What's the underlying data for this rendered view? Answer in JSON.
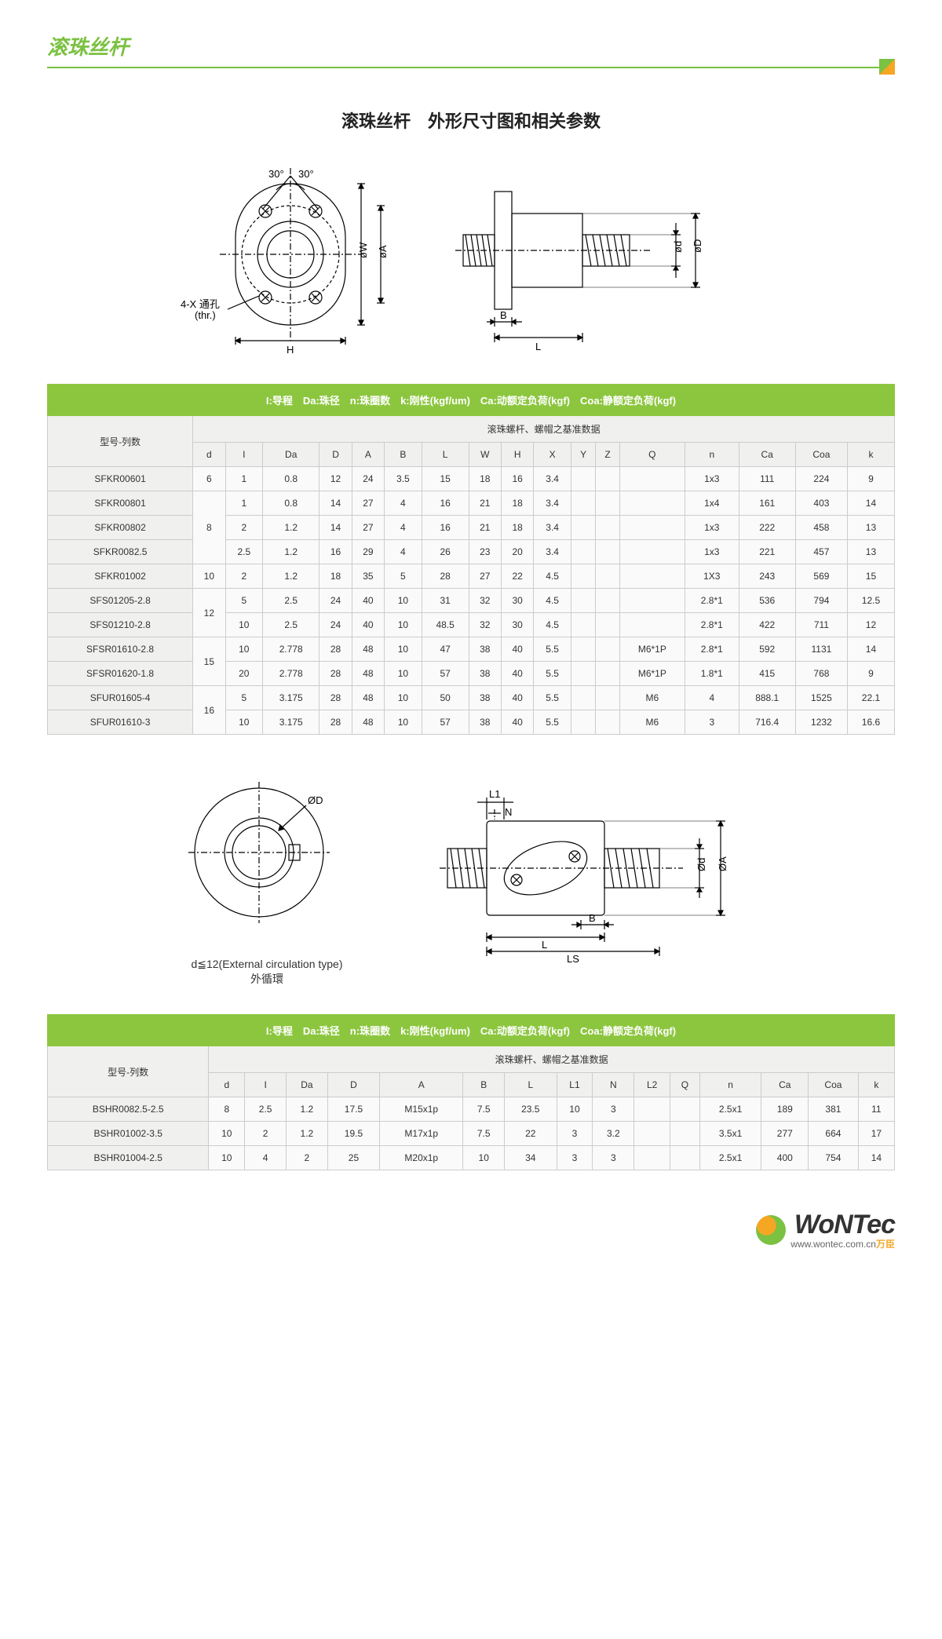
{
  "page_title": "滚珠丝杆",
  "section_title": "滚珠丝杆　外形尺寸图和相关参数",
  "diagram1": {
    "thru_label": "4-X 通孔\n(thr.)",
    "angles": [
      "30°",
      "30°"
    ],
    "dim_H": "H",
    "dim_W": "øW",
    "dim_A": "øA",
    "dim_B": "B",
    "dim_L": "L",
    "dim_d": "ød",
    "dim_D": "øD"
  },
  "table1": {
    "legend": "I:导程　Da:珠径　n:珠圈数　k:刚性(kgf/um)　Ca:动额定负荷(kgf)　Coa:静额定负荷(kgf)",
    "model_header": "型号-列数",
    "data_header": "滚珠螺杆、螺帽之基准数据",
    "columns": [
      "d",
      "I",
      "Da",
      "D",
      "A",
      "B",
      "L",
      "W",
      "H",
      "X",
      "Y",
      "Z",
      "Q",
      "n",
      "Ca",
      "Coa",
      "k"
    ],
    "rows": [
      {
        "model": "SFKR00601",
        "d": "6",
        "vals": [
          "1",
          "0.8",
          "12",
          "24",
          "3.5",
          "15",
          "18",
          "16",
          "3.4",
          "",
          "",
          "",
          "1x3",
          "111",
          "224",
          "9"
        ]
      },
      {
        "model": "SFKR00801",
        "d": "8",
        "rowspan_d": 3,
        "vals": [
          "1",
          "0.8",
          "14",
          "27",
          "4",
          "16",
          "21",
          "18",
          "3.4",
          "",
          "",
          "",
          "1x4",
          "161",
          "403",
          "14"
        ]
      },
      {
        "model": "SFKR00802",
        "vals": [
          "2",
          "1.2",
          "14",
          "27",
          "4",
          "16",
          "21",
          "18",
          "3.4",
          "",
          "",
          "",
          "1x3",
          "222",
          "458",
          "13"
        ]
      },
      {
        "model": "SFKR0082.5",
        "vals": [
          "2.5",
          "1.2",
          "16",
          "29",
          "4",
          "26",
          "23",
          "20",
          "3.4",
          "",
          "",
          "",
          "1x3",
          "221",
          "457",
          "13"
        ]
      },
      {
        "model": "SFKR01002",
        "d": "10",
        "vals": [
          "2",
          "1.2",
          "18",
          "35",
          "5",
          "28",
          "27",
          "22",
          "4.5",
          "",
          "",
          "",
          "1X3",
          "243",
          "569",
          "15"
        ]
      },
      {
        "model": "SFS01205-2.8",
        "d": "12",
        "rowspan_d": 2,
        "vals": [
          "5",
          "2.5",
          "24",
          "40",
          "10",
          "31",
          "32",
          "30",
          "4.5",
          "",
          "",
          "",
          "2.8*1",
          "536",
          "794",
          "12.5"
        ]
      },
      {
        "model": "SFS01210-2.8",
        "vals": [
          "10",
          "2.5",
          "24",
          "40",
          "10",
          "48.5",
          "32",
          "30",
          "4.5",
          "",
          "",
          "",
          "2.8*1",
          "422",
          "711",
          "12"
        ]
      },
      {
        "model": "SFSR01610-2.8",
        "d": "15",
        "rowspan_d": 2,
        "vals": [
          "10",
          "2.778",
          "28",
          "48",
          "10",
          "47",
          "38",
          "40",
          "5.5",
          "",
          "",
          "M6*1P",
          "2.8*1",
          "592",
          "1131",
          "14"
        ]
      },
      {
        "model": "SFSR01620-1.8",
        "vals": [
          "20",
          "2.778",
          "28",
          "48",
          "10",
          "57",
          "38",
          "40",
          "5.5",
          "",
          "",
          "M6*1P",
          "1.8*1",
          "415",
          "768",
          "9"
        ]
      },
      {
        "model": "SFUR01605-4",
        "d": "16",
        "rowspan_d": 2,
        "vals": [
          "5",
          "3.175",
          "28",
          "48",
          "10",
          "50",
          "38",
          "40",
          "5.5",
          "",
          "",
          "M6",
          "4",
          "888.1",
          "1525",
          "22.1"
        ]
      },
      {
        "model": "SFUR01610-3",
        "vals": [
          "10",
          "3.175",
          "28",
          "48",
          "10",
          "57",
          "38",
          "40",
          "5.5",
          "",
          "",
          "M6",
          "3",
          "716.4",
          "1232",
          "16.6"
        ]
      }
    ]
  },
  "diagram2": {
    "caption": "d≦12(External circulation type)",
    "caption_cn": "外循環",
    "dim_D": "ØD",
    "dim_L1": "L1",
    "dim_N": "N",
    "dim_B": "B",
    "dim_L": "L",
    "dim_LS": "LS",
    "dim_d": "Ød",
    "dim_A": "ØA"
  },
  "table2": {
    "legend": "I:导程　Da:珠径　n:珠圈数　k:刚性(kgf/um)　Ca:动额定负荷(kgf)　Coa:静额定负荷(kgf)",
    "model_header": "型号-列数",
    "data_header": "滚珠螺杆、螺帽之基准数据",
    "columns": [
      "d",
      "I",
      "Da",
      "D",
      "A",
      "B",
      "L",
      "L1",
      "N",
      "L2",
      "Q",
      "n",
      "Ca",
      "Coa",
      "k"
    ],
    "rows": [
      {
        "model": "BSHR0082.5-2.5",
        "vals": [
          "8",
          "2.5",
          "1.2",
          "17.5",
          "M15x1p",
          "7.5",
          "23.5",
          "10",
          "3",
          "",
          "",
          "2.5x1",
          "189",
          "381",
          "11"
        ]
      },
      {
        "model": "BSHR01002-3.5",
        "vals": [
          "10",
          "2",
          "1.2",
          "19.5",
          "M17x1p",
          "7.5",
          "22",
          "3",
          "3.2",
          "",
          "",
          "3.5x1",
          "277",
          "664",
          "17"
        ]
      },
      {
        "model": "BSHR01004-2.5",
        "vals": [
          "10",
          "4",
          "2",
          "25",
          "M20x1p",
          "10",
          "34",
          "3",
          "3",
          "",
          "",
          "2.5x1",
          "400",
          "754",
          "14"
        ]
      }
    ]
  },
  "footer": {
    "brand": "WONTec",
    "url": "www.wontec.com.cn",
    "brand_cn": "万臣"
  },
  "colors": {
    "accent": "#7bc142",
    "table_header": "#8cc63f",
    "orange": "#f5a623"
  }
}
